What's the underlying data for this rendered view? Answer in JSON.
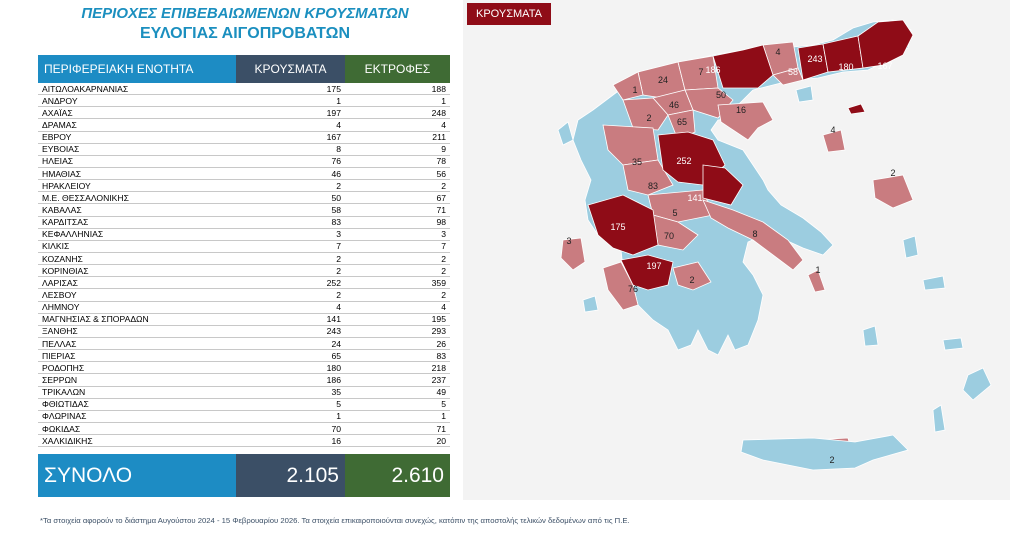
{
  "title": {
    "line1": "ΠΕΡΙΟΧΕΣ ΕΠΙΒΕΒΑΙΩΜΕΝΩΝ ΚΡΟΥΣΜΑΤΩΝ",
    "line2": "ΕΥΛΟΓΙΑΣ ΑΙΓΟΠΡΟΒΑΤΩΝ"
  },
  "table": {
    "headers": [
      "ΠΕΡΙΦΕΡΕΙΑΚΗ ΕΝΟΤΗΤΑ",
      "ΚΡΟΥΣΜΑΤΑ",
      "ΕΚΤΡΟΦΕΣ"
    ],
    "rows": [
      [
        "ΑΙΤΩΛΟΑΚΑΡΝΑΝΙΑΣ",
        "175",
        "188"
      ],
      [
        "ΑΝΔΡΟΥ",
        "1",
        "1"
      ],
      [
        "ΑΧΑΪΑΣ",
        "197",
        "248"
      ],
      [
        "ΔΡΑΜΑΣ",
        "4",
        "4"
      ],
      [
        "ΕΒΡΟΥ",
        "167",
        "211"
      ],
      [
        "ΕΥΒΟΙΑΣ",
        "8",
        "9"
      ],
      [
        "ΗΛΕΙΑΣ",
        "76",
        "78"
      ],
      [
        "ΗΜΑΘΙΑΣ",
        "46",
        "56"
      ],
      [
        "ΗΡΑΚΛΕΙΟΥ",
        "2",
        "2"
      ],
      [
        "Μ.Ε. ΘΕΣΣΑΛΟΝΙΚΗΣ",
        "50",
        "67"
      ],
      [
        "ΚΑΒΑΛΑΣ",
        "58",
        "71"
      ],
      [
        "ΚΑΡΔΙΤΣΑΣ",
        "83",
        "98"
      ],
      [
        "ΚΕΦΑΛΛΗΝΙΑΣ",
        "3",
        "3"
      ],
      [
        "ΚΙΛΚΙΣ",
        "7",
        "7"
      ],
      [
        "ΚΟΖΑΝΗΣ",
        "2",
        "2"
      ],
      [
        "ΚΟΡΙΝΘΙΑΣ",
        "2",
        "2"
      ],
      [
        "ΛΑΡΙΣΑΣ",
        "252",
        "359"
      ],
      [
        "ΛΕΣΒΟΥ",
        "2",
        "2"
      ],
      [
        "ΛΗΜΝΟΥ",
        "4",
        "4"
      ],
      [
        "ΜΑΓΝΗΣΙΑΣ & ΣΠΟΡΑΔΩΝ",
        "141",
        "195"
      ],
      [
        "ΞΑΝΘΗΣ",
        "243",
        "293"
      ],
      [
        "ΠΕΛΛΑΣ",
        "24",
        "26"
      ],
      [
        "ΠΙΕΡΙΑΣ",
        "65",
        "83"
      ],
      [
        "ΡΟΔΟΠΗΣ",
        "180",
        "218"
      ],
      [
        "ΣΕΡΡΩΝ",
        "186",
        "237"
      ],
      [
        "ΤΡΙΚΑΛΩΝ",
        "35",
        "49"
      ],
      [
        "ΦΘΙΩΤΙΔΑΣ",
        "5",
        "5"
      ],
      [
        "ΦΛΩΡΙΝΑΣ",
        "1",
        "1"
      ],
      [
        "ΦΩΚΙΔΑΣ",
        "70",
        "71"
      ],
      [
        "ΧΑΛΚΙΔΙΚΗΣ",
        "16",
        "20"
      ]
    ],
    "total": {
      "label": "ΣΥΝΟΛΟ",
      "cases": "2.105",
      "farms": "2.610"
    }
  },
  "map": {
    "badge": "ΚΡΟΥΣΜΑΤΑ",
    "colors": {
      "high": "#8f0c17",
      "medium": "#c97c80",
      "none": "#9ccde0",
      "background": "#f3f3f3"
    },
    "labels": [
      "186",
      "4",
      "58",
      "243",
      "180",
      "167",
      "24",
      "7",
      "1",
      "46",
      "50",
      "2",
      "65",
      "16",
      "4",
      "2",
      "35",
      "252",
      "83",
      "141",
      "5",
      "175",
      "70",
      "8",
      "3",
      "197",
      "2",
      "76",
      "1",
      "2"
    ]
  },
  "footnote": "*Τα στοιχεία αφορούν το διάστημα Αυγούστου 2024 - 15 Φεβρουαρίου 2026. Τα στοιχεία επικαιροποιούνται συνεχώς, κατόπιν της αποστολής τελικών δεδομένων από τις Π.Ε."
}
